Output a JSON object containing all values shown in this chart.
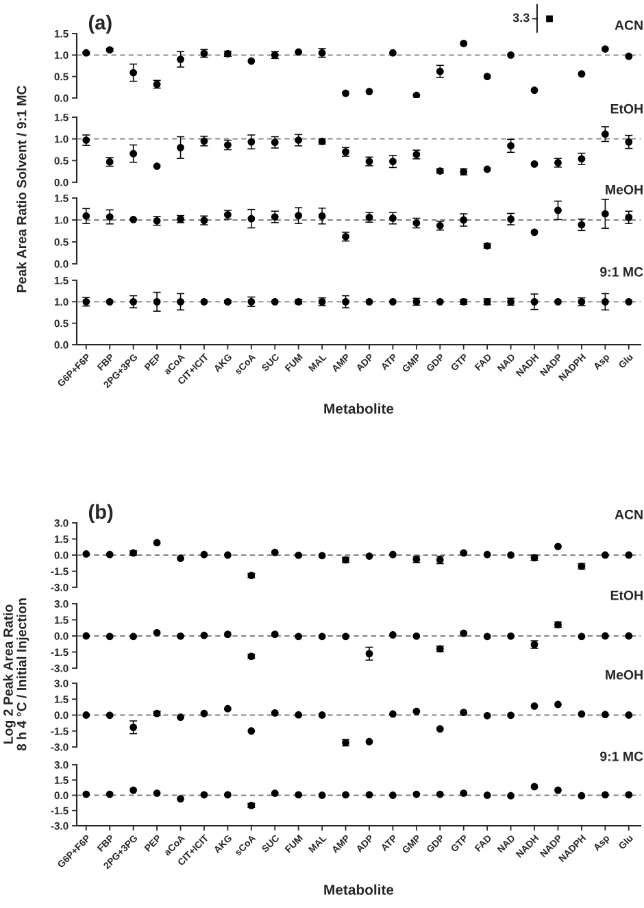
{
  "chart_data": [
    {
      "type": "scatter",
      "title": "ACN",
      "ylabel": "Peak Area Ratio Solvent / 9:1 MC",
      "annotations": [
        "(a)",
        "3.3"
      ],
      "marker": "circle",
      "tick_labels": "y",
      "ylim": [
        0,
        1.5
      ],
      "yticks": [
        {
          "value": 0,
          "label": "0.0"
        },
        0.5,
        {
          "value": 1,
          "label": "1.0"
        },
        1.5
      ],
      "ref_lines": [
        {
          "axis": "y",
          "value": 1,
          "color": "#808080",
          "line_style": "dashed"
        }
      ],
      "series": [
        {
          "color": "#000000",
          "values": [
            1.05,
            1.12,
            0.59,
            0.32,
            0.9,
            1.04,
            1.03,
            0.86,
            1.0,
            1.07,
            1.05,
            0.11,
            0.15,
            1.05,
            0.06,
            0.62,
            1.27,
            0.5,
            1.0,
            0.18,
            null,
            0.56,
            1.14,
            0.97
          ],
          "errors": [
            0.02,
            0.03,
            0.2,
            0.09,
            0.18,
            0.09,
            0.06,
            null,
            0.08,
            null,
            0.1,
            null,
            null,
            null,
            null,
            0.14,
            null,
            null,
            null,
            null,
            null,
            null,
            null,
            null
          ]
        }
      ]
    },
    {
      "type": "scatter",
      "title": "EtOH",
      "marker": "circle",
      "tick_labels": "y",
      "ylim": [
        0,
        1.5
      ],
      "yticks": [
        {
          "value": 0,
          "label": "0.0"
        },
        0.5,
        {
          "value": 1,
          "label": "1.0"
        },
        1.5
      ],
      "ref_lines": [
        {
          "axis": "y",
          "value": 1,
          "color": "#808080",
          "line_style": "dashed"
        }
      ],
      "series": [
        {
          "color": "#000000",
          "values": [
            0.97,
            0.47,
            0.66,
            0.37,
            0.8,
            0.95,
            0.86,
            0.93,
            0.92,
            0.97,
            0.94,
            0.7,
            0.48,
            0.48,
            0.64,
            0.26,
            0.24,
            0.3,
            0.84,
            0.42,
            0.45,
            0.54,
            1.11,
            0.93
          ],
          "errors": [
            0.12,
            0.1,
            0.2,
            null,
            0.25,
            0.11,
            0.11,
            0.16,
            0.13,
            0.13,
            0.06,
            0.1,
            0.1,
            0.14,
            0.1,
            0.05,
            0.07,
            null,
            0.15,
            null,
            0.1,
            0.13,
            0.17,
            0.15
          ]
        }
      ]
    },
    {
      "type": "scatter",
      "title": "MeOH",
      "marker": "circle",
      "tick_labels": "y",
      "ylim": [
        0,
        1.5
      ],
      "yticks": [
        {
          "value": 0,
          "label": "0.0"
        },
        0.5,
        {
          "value": 1,
          "label": "1.0"
        },
        1.5
      ],
      "ref_lines": [
        {
          "axis": "y",
          "value": 1,
          "color": "#808080",
          "line_style": "dashed"
        }
      ],
      "series": [
        {
          "color": "#000000",
          "values": [
            1.09,
            1.07,
            1.01,
            0.98,
            1.02,
            0.99,
            1.12,
            1.03,
            1.07,
            1.1,
            1.09,
            0.62,
            1.06,
            1.04,
            0.93,
            0.87,
            1.0,
            0.41,
            1.02,
            0.72,
            1.22,
            0.89,
            1.14,
            1.06
          ],
          "errors": [
            0.17,
            0.16,
            null,
            0.1,
            0.08,
            0.1,
            0.1,
            0.21,
            0.13,
            0.18,
            0.18,
            0.1,
            0.11,
            0.13,
            0.11,
            0.1,
            0.14,
            0.05,
            0.13,
            null,
            0.21,
            0.13,
            0.33,
            0.14
          ]
        }
      ]
    },
    {
      "type": "scatter",
      "title": "9:1 MC",
      "categories": [
        "G6P+F6P",
        "FBP",
        "2PG+3PG",
        "PEP",
        "aCoA",
        "CIT+ICIT",
        "AKG",
        "sCoA",
        "SUC",
        "FUM",
        "MAL",
        "AMP",
        "ADP",
        "ATP",
        "GMP",
        "GDP",
        "GTP",
        "FAD",
        "NAD",
        "NADH",
        "NADP",
        "NADPH",
        "Asp",
        "Glu"
      ],
      "xlabel": "Metabolite",
      "marker": "circle",
      "ylim": [
        0,
        1.5
      ],
      "yticks": [
        {
          "value": 0,
          "label": "0.0"
        },
        0.5,
        {
          "value": 1,
          "label": "1.0"
        },
        1.5
      ],
      "ref_lines": [
        {
          "axis": "y",
          "value": 1,
          "color": "#808080",
          "line_style": "dashed"
        }
      ],
      "series": [
        {
          "color": "#000000",
          "values": [
            1.0,
            1.0,
            1.0,
            1.0,
            1.0,
            1.0,
            1.0,
            1.0,
            1.0,
            1.0,
            1.0,
            1.0,
            1.0,
            1.0,
            1.0,
            1.0,
            1.0,
            1.0,
            1.0,
            1.0,
            1.0,
            1.0,
            1.0,
            1.0
          ],
          "errors": [
            0.1,
            null,
            0.14,
            0.22,
            0.19,
            null,
            0.03,
            0.11,
            null,
            0.05,
            0.09,
            0.14,
            null,
            null,
            0.08,
            null,
            0.06,
            0.07,
            0.08,
            0.18,
            null,
            0.09,
            0.19,
            null
          ]
        }
      ]
    },
    {
      "type": "scatter",
      "title": "ACN",
      "ylabel": "Log 2 Peak Area Ratio\n8 h 4 °C / Initial Injection",
      "annotations": [
        "(b)"
      ],
      "marker": "circle",
      "tick_labels": "y",
      "ylim": [
        -3,
        3
      ],
      "yticks": [
        {
          "value": -3,
          "label": "-3.0"
        },
        -1.5,
        {
          "value": 0,
          "label": "0.0"
        },
        1.5,
        {
          "value": 3,
          "label": "3.0"
        }
      ],
      "ref_lines": [
        {
          "axis": "y",
          "value": 0,
          "color": "#808080",
          "line_style": "dashed"
        }
      ],
      "series": [
        {
          "color": "#000000",
          "values": [
            0.1,
            0.05,
            0.2,
            1.15,
            -0.3,
            0.05,
            0.0,
            -1.9,
            0.25,
            -0.02,
            -0.05,
            -0.45,
            -0.1,
            0.05,
            -0.4,
            -0.45,
            0.2,
            0.05,
            0.0,
            -0.25,
            0.8,
            -1.05,
            0.0,
            0.0
          ],
          "errors": [
            null,
            null,
            0.2,
            null,
            null,
            null,
            null,
            0.2,
            null,
            null,
            null,
            0.25,
            null,
            null,
            0.3,
            0.35,
            null,
            null,
            null,
            0.25,
            null,
            0.25,
            null,
            null
          ]
        }
      ]
    },
    {
      "type": "scatter",
      "title": "EtOH",
      "marker": "circle",
      "tick_labels": "y",
      "ylim": [
        -3,
        3
      ],
      "yticks": [
        {
          "value": -3,
          "label": "-3.0"
        },
        -1.5,
        {
          "value": 0,
          "label": "0.0"
        },
        1.5,
        {
          "value": 3,
          "label": "3.0"
        }
      ],
      "ref_lines": [
        {
          "axis": "y",
          "value": 0,
          "color": "#808080",
          "line_style": "dashed"
        }
      ],
      "series": [
        {
          "color": "#000000",
          "values": [
            0.0,
            -0.05,
            -0.05,
            0.3,
            -0.02,
            0.05,
            0.15,
            -1.9,
            0.15,
            -0.05,
            -0.05,
            -0.05,
            -1.65,
            0.1,
            -0.02,
            -1.2,
            0.25,
            -0.05,
            -0.02,
            -0.8,
            1.05,
            -0.05,
            0.0,
            0.0
          ],
          "errors": [
            null,
            null,
            null,
            null,
            null,
            null,
            null,
            0.2,
            null,
            null,
            null,
            null,
            0.6,
            null,
            null,
            0.25,
            null,
            null,
            null,
            0.35,
            0.25,
            null,
            null,
            null
          ]
        }
      ]
    },
    {
      "type": "scatter",
      "title": "MeOH",
      "marker": "circle",
      "tick_labels": "y",
      "ylim": [
        -3,
        3
      ],
      "yticks": [
        {
          "value": -3,
          "label": "-3.0"
        },
        -1.5,
        {
          "value": 0,
          "label": "0.0"
        },
        1.5,
        {
          "value": 3,
          "label": "3.0"
        }
      ],
      "ref_lines": [
        {
          "axis": "y",
          "value": 0,
          "color": "#808080",
          "line_style": "dashed"
        }
      ],
      "series": [
        {
          "color": "#000000",
          "values": [
            0.0,
            -0.02,
            -1.15,
            0.15,
            -0.2,
            0.15,
            0.6,
            -1.5,
            0.2,
            0.02,
            0.0,
            -2.6,
            -2.5,
            0.1,
            0.35,
            -1.3,
            0.25,
            -0.05,
            -0.02,
            0.85,
            1.0,
            0.1,
            0.05,
            0.0
          ],
          "errors": [
            null,
            null,
            0.6,
            0.2,
            null,
            null,
            null,
            null,
            null,
            null,
            null,
            0.3,
            null,
            null,
            null,
            null,
            null,
            null,
            null,
            null,
            null,
            null,
            null,
            null
          ]
        }
      ]
    },
    {
      "type": "scatter",
      "title": "9:1 MC",
      "categories": [
        "G6P+F6P",
        "FBP",
        "2PG+3PG",
        "PEP",
        "aCoA",
        "CIT+ICIT",
        "AKG",
        "sCoA",
        "SUC",
        "FUM",
        "MAL",
        "AMP",
        "ADP",
        "ATP",
        "GMP",
        "GDP",
        "GTP",
        "FAD",
        "NAD",
        "NADH",
        "NADP",
        "NADPH",
        "Asp",
        "Glu"
      ],
      "xlabel": "Metabolite",
      "marker": "circle",
      "ylim": [
        -3,
        3
      ],
      "yticks": [
        {
          "value": -3,
          "label": "-3.0"
        },
        -1.5,
        {
          "value": 0,
          "label": "0.0"
        },
        1.5,
        {
          "value": 3,
          "label": "3.0"
        }
      ],
      "ref_lines": [
        {
          "axis": "y",
          "value": 0,
          "color": "#808080",
          "line_style": "dashed"
        }
      ],
      "series": [
        {
          "color": "#000000",
          "values": [
            0.1,
            0.1,
            0.5,
            0.2,
            -0.35,
            0.05,
            0.05,
            -1.0,
            0.2,
            0.05,
            0.0,
            0.05,
            0.05,
            0.0,
            0.1,
            0.1,
            0.2,
            0.0,
            -0.05,
            0.85,
            0.5,
            -0.05,
            0.05,
            0.05
          ],
          "errors": [
            null,
            null,
            null,
            null,
            null,
            null,
            null,
            0.2,
            null,
            null,
            null,
            null,
            null,
            null,
            null,
            null,
            null,
            null,
            null,
            null,
            null,
            null,
            null,
            null
          ]
        }
      ]
    }
  ]
}
